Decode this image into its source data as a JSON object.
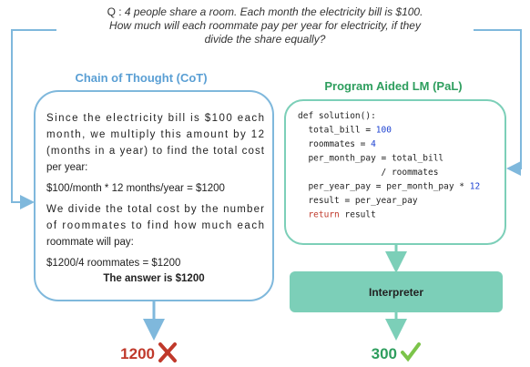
{
  "question": {
    "prefix": "Q :",
    "lines": [
      "4 people share a room. Each month the electricity bill is $100.",
      "How much will each roommate pay per year for electricity, if they",
      "divide the share equally?"
    ]
  },
  "cot": {
    "title": "Chain of Thought (CoT)",
    "paragraphs": [
      [
        "Since the electricity bill is $100 each",
        "month, we multiply this amount by 12",
        "(months in a year) to find the total cost",
        "per year:"
      ],
      [
        "$100/month * 12 months/year = $1200"
      ],
      [
        "We divide the total cost by the number",
        "of roommates to find how much each",
        "roommate will pay:"
      ],
      [
        "$1200/4 roommates = $1200"
      ]
    ],
    "answer": "The answer is $1200",
    "result": "1200"
  },
  "pal": {
    "title": "Program Aided LM (PaL)",
    "code": [
      [
        "def solution():"
      ],
      [
        "  total_bill = ",
        "100"
      ],
      [
        "  roommates = ",
        "4"
      ],
      [
        "  per_month_pay = total_bill"
      ],
      [
        "                / roommates"
      ],
      [
        "  per_year_pay = per_month_pay * ",
        "12"
      ],
      [
        "  result = per_year_pay"
      ],
      [
        "  ",
        "return",
        " result"
      ]
    ],
    "interpreter": "Interpreter",
    "result": "300"
  }
}
